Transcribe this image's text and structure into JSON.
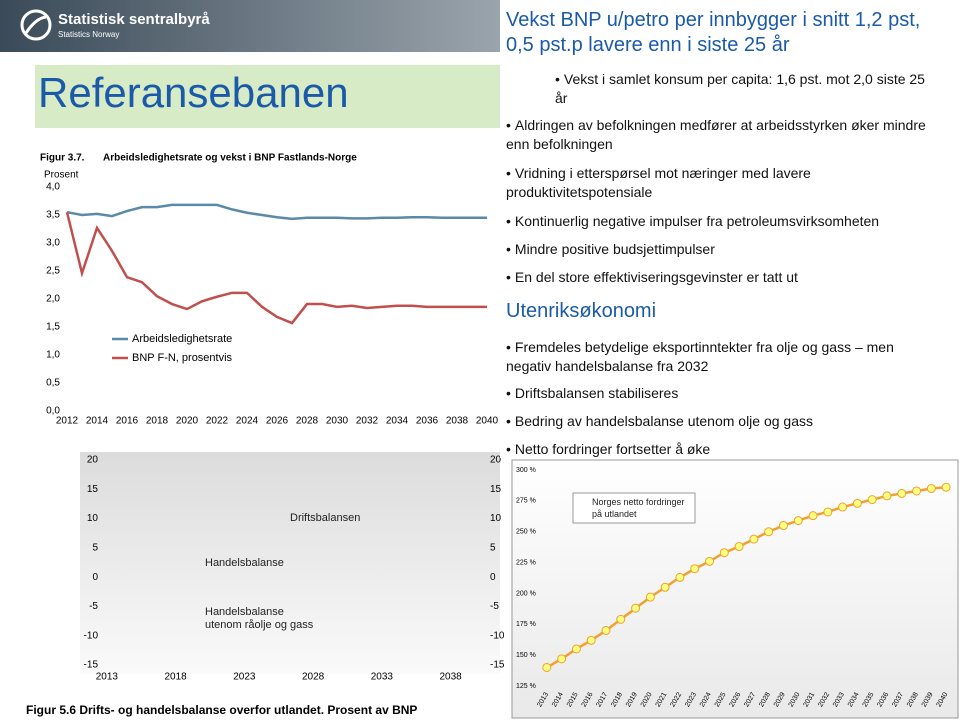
{
  "header": {
    "logo_name": "Statistisk sentralbyrå",
    "logo_sub": "Statistics Norway",
    "title": "Referansebanen"
  },
  "slide": {
    "headline": "Vekst BNP u/petro per innbygger i snitt 1,2 pst, 0,5 pst.p lavere enn i siste 25 år",
    "sub_bullets": [
      "Vekst i samlet konsum per capita: 1,6 pst. mot 2,0 siste 25 år"
    ],
    "bullets": [
      "Aldringen av befolkningen medfører at arbeidsstyrken øker mindre enn befolkningen",
      "Vridning i etterspørsel mot næringer med lavere produktivitetspotensiale",
      "Kontinuerlig negative impulser fra petroleumsvirksomheten",
      "Mindre positive budsjettimpulser",
      "En del store effektiviseringsgevinster er tatt ut"
    ],
    "section": "Utenriksøkonomi",
    "section_bullets": [
      "Fremdeles betydelige eksportinntekter fra olje og gass – men negativ handelsbalanse fra 2032",
      "Driftsbalansen stabiliseres",
      "Bedring av handelsbalanse utenom olje og gass",
      "Netto fordringer fortsetter å øke"
    ]
  },
  "chart_data": [
    {
      "type": "line",
      "figure_label": "Figur 3.7.",
      "title": "Arbeidsledighetsrate og vekst i BNP Fastlands-Norge",
      "ylabel": "Prosent",
      "x": [
        2012,
        2013,
        2014,
        2015,
        2016,
        2017,
        2018,
        2019,
        2020,
        2021,
        2022,
        2023,
        2024,
        2025,
        2026,
        2027,
        2028,
        2029,
        2030,
        2031,
        2032,
        2033,
        2034,
        2035,
        2036,
        2037,
        2038,
        2039,
        2040
      ],
      "xlim": [
        2011,
        2041
      ],
      "xticks": [
        2012,
        2014,
        2016,
        2018,
        2020,
        2022,
        2024,
        2026,
        2028,
        2030,
        2032,
        2034,
        2036,
        2038,
        2040
      ],
      "ylim": [
        0,
        4
      ],
      "yticks": [
        {
          "value": 0,
          "label": "0,0"
        },
        {
          "value": 0.5,
          "label": "0,5"
        },
        {
          "value": 1,
          "label": "1,0"
        },
        {
          "value": 1.5,
          "label": "1,5"
        },
        {
          "value": 2,
          "label": "2,0"
        },
        {
          "value": 2.5,
          "label": "2,5"
        },
        {
          "value": 3,
          "label": "3,0"
        },
        {
          "value": 3.5,
          "label": "3,5"
        },
        {
          "value": 4,
          "label": "4,0"
        }
      ],
      "grid": false,
      "legend": "lower left",
      "series": [
        {
          "name": "Arbeidsledighetsrate",
          "color": "#5b8aa6",
          "values": [
            3.55,
            3.5,
            3.52,
            3.48,
            3.57,
            3.64,
            3.64,
            3.68,
            3.68,
            3.68,
            3.68,
            3.6,
            3.54,
            3.5,
            3.46,
            3.43,
            3.45,
            3.45,
            3.45,
            3.44,
            3.44,
            3.45,
            3.45,
            3.46,
            3.46,
            3.45,
            3.45,
            3.45,
            3.45
          ]
        },
        {
          "name": "BNP F-N, prosentvis",
          "color": "#c0504d",
          "values": [
            3.55,
            2.46,
            3.27,
            2.86,
            2.39,
            2.3,
            2.05,
            1.91,
            1.82,
            1.96,
            2.04,
            2.11,
            2.11,
            1.86,
            1.68,
            1.57,
            1.91,
            1.91,
            1.86,
            1.88,
            1.84,
            1.86,
            1.88,
            1.88,
            1.86,
            1.86,
            1.86,
            1.86,
            1.86
          ]
        }
      ]
    },
    {
      "type": "line",
      "caption": "Figur 5.6 Drifts- og handelsbalanse overfor utlandet. Prosent av BNP",
      "xlim": [
        2012.5,
        2040.5
      ],
      "xticks": [
        2013,
        2018,
        2023,
        2028,
        2033,
        2038
      ],
      "ylim": [
        -15,
        20
      ],
      "yticks": [
        -15,
        -10,
        -5,
        0,
        5,
        10,
        15,
        20
      ],
      "grid": false,
      "annotations": [
        "Driftsbalansen",
        "Handelsbalanse",
        "Handelsbalanse utenom råolje og gass"
      ],
      "series": []
    },
    {
      "type": "line",
      "markers": true,
      "x": [
        2013,
        2014,
        2015,
        2016,
        2017,
        2018,
        2019,
        2020,
        2021,
        2022,
        2023,
        2024,
        2025,
        2026,
        2027,
        2028,
        2029,
        2030,
        2031,
        2032,
        2033,
        2034,
        2035,
        2036,
        2037,
        2038,
        2039,
        2040
      ],
      "xlim": [
        2012.2,
        2040.6
      ],
      "ylim": [
        125,
        300
      ],
      "yticks": [
        {
          "value": 125,
          "label": "125 %"
        },
        {
          "value": 150,
          "label": "150 %"
        },
        {
          "value": 175,
          "label": "175 %"
        },
        {
          "value": 200,
          "label": "200 %"
        },
        {
          "value": 225,
          "label": "225 %"
        },
        {
          "value": 250,
          "label": "250 %"
        },
        {
          "value": 275,
          "label": "275 %"
        },
        {
          "value": 300,
          "label": "300 %"
        }
      ],
      "grid": false,
      "series": [
        {
          "name": "Norges netto fordringer på utlandet",
          "color": "#f0a030",
          "marker_color": "#ffff80",
          "values": [
            140,
            147,
            155,
            162,
            170,
            179,
            188,
            197,
            205,
            213,
            220,
            226,
            233,
            238,
            244,
            250,
            255,
            259,
            263,
            266,
            270,
            273,
            276,
            279,
            281,
            283,
            285,
            286
          ]
        }
      ]
    }
  ]
}
